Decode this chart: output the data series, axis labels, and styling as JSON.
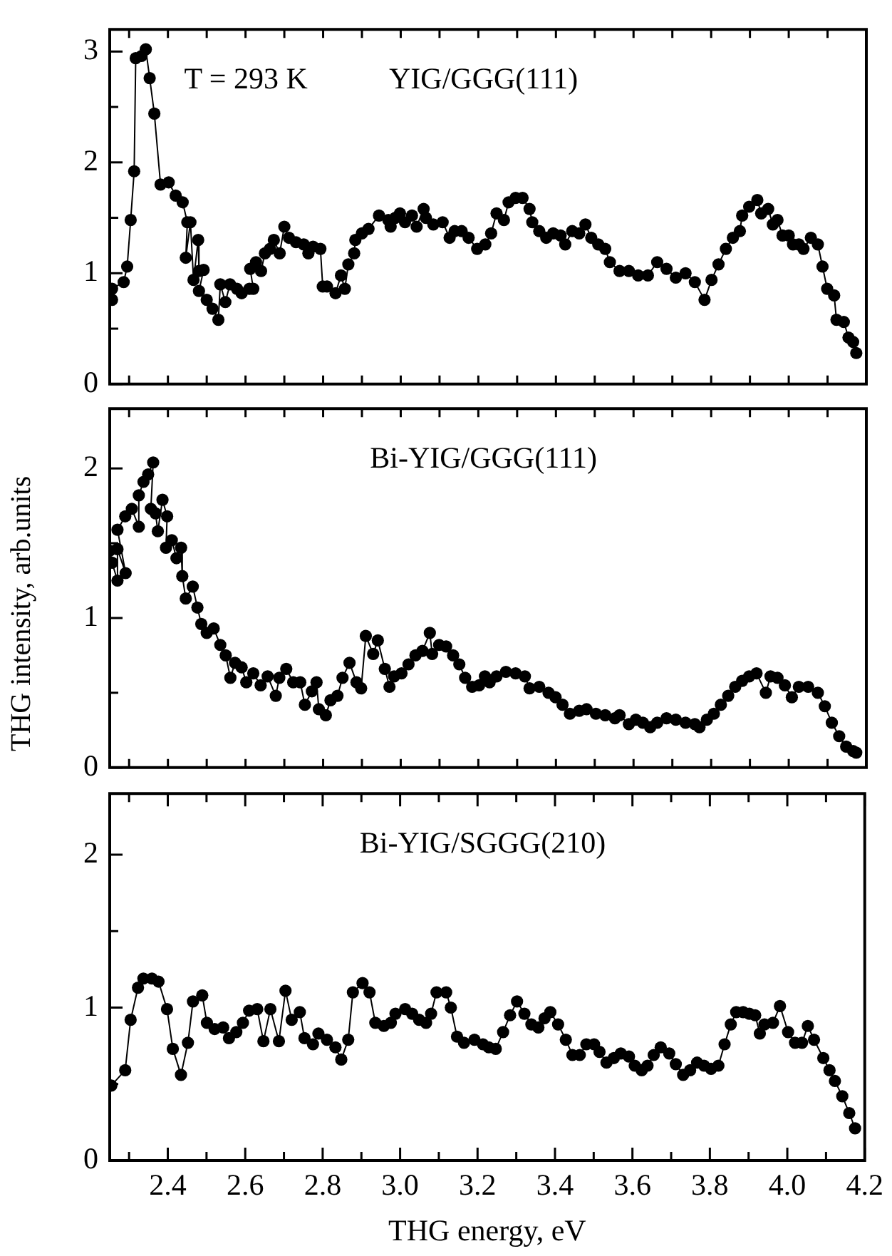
{
  "chart_data": [
    {
      "type": "line",
      "title": "YIG/GGG(111)",
      "annotations": [
        "T = 293 K"
      ],
      "color": "#000000",
      "marker": "circle",
      "line_style": "solid",
      "tick_labels": "y",
      "x": [
        2.256,
        2.256,
        2.286,
        2.295,
        2.304,
        2.313,
        2.317,
        2.332,
        2.343,
        2.353,
        2.365,
        2.381,
        2.402,
        2.42,
        2.438,
        2.45,
        2.446,
        2.458,
        2.466,
        2.478,
        2.48,
        2.492,
        2.48,
        2.5,
        2.515,
        2.53,
        2.535,
        2.548,
        2.56,
        2.578,
        2.59,
        2.61,
        2.62,
        2.612,
        2.627,
        2.64,
        2.65,
        2.663,
        2.673,
        2.688,
        2.7,
        2.712,
        2.73,
        2.75,
        2.762,
        2.774,
        2.793,
        2.799,
        2.81,
        2.832,
        2.846,
        2.856,
        2.865,
        2.88,
        2.883,
        2.9,
        2.917,
        2.944,
        2.968,
        2.974,
        2.986,
        2.998,
        3.011,
        3.029,
        3.041,
        3.059,
        3.065,
        3.084,
        3.108,
        3.126,
        3.139,
        3.157,
        3.175,
        3.197,
        3.218,
        3.233,
        3.247,
        3.266,
        3.278,
        3.296,
        3.314,
        3.332,
        3.339,
        3.357,
        3.375,
        3.393,
        3.412,
        3.424,
        3.442,
        3.46,
        3.476,
        3.491,
        3.509,
        3.527,
        3.539,
        3.564,
        3.588,
        3.612,
        3.637,
        3.661,
        3.685,
        3.709,
        3.734,
        3.758,
        3.783,
        3.801,
        3.819,
        3.838,
        3.856,
        3.874,
        3.88,
        3.898,
        3.919,
        3.929,
        3.947,
        3.959,
        3.971,
        3.984,
        4.0,
        4.011,
        4.026,
        4.038,
        4.057,
        4.075,
        4.087,
        4.099,
        4.117,
        4.123,
        4.142,
        4.154,
        4.166,
        4.174
      ],
      "values": [
        0.76,
        0.86,
        0.92,
        1.06,
        1.48,
        1.92,
        2.94,
        2.96,
        3.02,
        2.76,
        2.44,
        1.8,
        1.82,
        1.7,
        1.64,
        1.46,
        1.14,
        1.46,
        0.94,
        1.3,
        1.02,
        1.03,
        0.84,
        0.76,
        0.68,
        0.58,
        0.9,
        0.74,
        0.9,
        0.86,
        0.82,
        0.86,
        0.86,
        1.04,
        1.1,
        1.02,
        1.18,
        1.22,
        1.3,
        1.18,
        1.42,
        1.32,
        1.28,
        1.26,
        1.18,
        1.24,
        1.22,
        0.88,
        0.88,
        0.82,
        0.98,
        0.86,
        1.08,
        1.18,
        1.3,
        1.36,
        1.4,
        1.52,
        1.48,
        1.42,
        1.5,
        1.54,
        1.46,
        1.52,
        1.42,
        1.58,
        1.5,
        1.44,
        1.46,
        1.32,
        1.38,
        1.38,
        1.32,
        1.22,
        1.26,
        1.36,
        1.54,
        1.48,
        1.64,
        1.68,
        1.68,
        1.58,
        1.46,
        1.38,
        1.32,
        1.36,
        1.34,
        1.26,
        1.38,
        1.36,
        1.44,
        1.32,
        1.26,
        1.22,
        1.1,
        1.02,
        1.02,
        0.98,
        0.98,
        1.1,
        1.04,
        0.96,
        1.0,
        0.92,
        0.76,
        0.94,
        1.08,
        1.22,
        1.32,
        1.38,
        1.52,
        1.6,
        1.66,
        1.54,
        1.58,
        1.44,
        1.48,
        1.34,
        1.34,
        1.26,
        1.26,
        1.22,
        1.32,
        1.26,
        1.06,
        0.86,
        0.8,
        0.58,
        0.56,
        0.42,
        0.38,
        0.28
      ],
      "xlim": [
        2.25,
        4.2
      ],
      "xticks": [
        {
          "value": 2.3,
          "label": null
        },
        {
          "value": 2.4,
          "label": null
        },
        {
          "value": 2.5,
          "label": null
        },
        {
          "value": 2.6,
          "label": null
        },
        {
          "value": 2.7,
          "label": null
        },
        {
          "value": 2.8,
          "label": null
        },
        {
          "value": 2.9,
          "label": null
        },
        {
          "value": 3,
          "label": null
        },
        {
          "value": 3.1,
          "label": null
        },
        {
          "value": 3.2,
          "label": null
        },
        {
          "value": 3.3,
          "label": null
        },
        {
          "value": 3.4,
          "label": null
        },
        {
          "value": 3.5,
          "label": null
        },
        {
          "value": 3.6,
          "label": null
        },
        {
          "value": 3.7,
          "label": null
        },
        {
          "value": 3.8,
          "label": null
        },
        {
          "value": 3.9,
          "label": null
        },
        {
          "value": 4,
          "label": null
        },
        {
          "value": 4.1,
          "label": null
        },
        {
          "value": 4.2,
          "label": null
        }
      ],
      "ylim": [
        0,
        3.2
      ],
      "yticks": [
        0,
        {
          "value": 0.5,
          "label": null
        },
        1,
        {
          "value": 1.5,
          "label": null
        },
        2,
        {
          "value": 2.5,
          "label": null
        },
        3
      ]
    },
    {
      "type": "line",
      "title": "Bi-YIG/GGG(111)",
      "ylabel": "THG intensity, arb.units",
      "color": "#000000",
      "marker": "circle",
      "line_style": "solid",
      "tick_labels": "y",
      "x": [
        2.25,
        2.256,
        2.27,
        2.27,
        2.291,
        2.27,
        2.29,
        2.307,
        2.325,
        2.325,
        2.337,
        2.349,
        2.362,
        2.356,
        2.368,
        2.374,
        2.386,
        2.398,
        2.395,
        2.41,
        2.422,
        2.434,
        2.437,
        2.446,
        2.464,
        2.476,
        2.486,
        2.5,
        2.518,
        2.535,
        2.549,
        2.561,
        2.573,
        2.59,
        2.602,
        2.62,
        2.639,
        2.657,
        2.678,
        2.687,
        2.705,
        2.723,
        2.741,
        2.753,
        2.771,
        2.783,
        2.789,
        2.807,
        2.819,
        2.837,
        2.85,
        2.868,
        2.886,
        2.898,
        2.91,
        2.929,
        2.941,
        2.959,
        2.971,
        2.983,
        3.002,
        3.02,
        3.038,
        3.056,
        3.075,
        3.081,
        3.099,
        3.117,
        3.135,
        3.151,
        3.166,
        3.184,
        3.202,
        3.217,
        3.229,
        3.247,
        3.271,
        3.296,
        3.32,
        3.332,
        3.357,
        3.381,
        3.399,
        3.417,
        3.436,
        3.46,
        3.479,
        3.503,
        3.527,
        3.552,
        3.564,
        3.588,
        3.606,
        3.624,
        3.643,
        3.661,
        3.685,
        3.709,
        3.734,
        3.758,
        3.77,
        3.789,
        3.807,
        3.825,
        3.844,
        3.862,
        3.88,
        3.898,
        3.917,
        3.941,
        3.953,
        3.971,
        3.99,
        4.008,
        4.026,
        4.05,
        4.075,
        4.093,
        4.111,
        4.13,
        4.148,
        4.166,
        4.174
      ],
      "values": [
        1.45,
        1.37,
        1.25,
        1.46,
        1.3,
        1.59,
        1.68,
        1.73,
        1.61,
        1.82,
        1.91,
        1.96,
        2.04,
        1.73,
        1.7,
        1.58,
        1.79,
        1.68,
        1.47,
        1.52,
        1.4,
        1.47,
        1.28,
        1.13,
        1.21,
        1.07,
        0.96,
        0.9,
        0.93,
        0.82,
        0.75,
        0.6,
        0.7,
        0.67,
        0.57,
        0.63,
        0.55,
        0.61,
        0.48,
        0.6,
        0.66,
        0.57,
        0.57,
        0.42,
        0.51,
        0.57,
        0.39,
        0.35,
        0.45,
        0.48,
        0.6,
        0.7,
        0.57,
        0.53,
        0.88,
        0.76,
        0.85,
        0.66,
        0.54,
        0.61,
        0.63,
        0.69,
        0.75,
        0.78,
        0.9,
        0.76,
        0.82,
        0.81,
        0.75,
        0.69,
        0.6,
        0.54,
        0.55,
        0.61,
        0.57,
        0.61,
        0.64,
        0.63,
        0.61,
        0.53,
        0.54,
        0.5,
        0.47,
        0.42,
        0.36,
        0.38,
        0.39,
        0.36,
        0.35,
        0.33,
        0.35,
        0.29,
        0.32,
        0.3,
        0.27,
        0.3,
        0.33,
        0.32,
        0.3,
        0.29,
        0.27,
        0.32,
        0.36,
        0.42,
        0.48,
        0.54,
        0.58,
        0.61,
        0.63,
        0.5,
        0.61,
        0.6,
        0.55,
        0.47,
        0.54,
        0.54,
        0.5,
        0.41,
        0.3,
        0.21,
        0.14,
        0.11,
        0.1
      ],
      "xlim": [
        2.25,
        4.2
      ],
      "xticks": [
        {
          "value": 2.3,
          "label": null
        },
        {
          "value": 2.4,
          "label": null
        },
        {
          "value": 2.5,
          "label": null
        },
        {
          "value": 2.6,
          "label": null
        },
        {
          "value": 2.7,
          "label": null
        },
        {
          "value": 2.8,
          "label": null
        },
        {
          "value": 2.9,
          "label": null
        },
        {
          "value": 3,
          "label": null
        },
        {
          "value": 3.1,
          "label": null
        },
        {
          "value": 3.2,
          "label": null
        },
        {
          "value": 3.3,
          "label": null
        },
        {
          "value": 3.4,
          "label": null
        },
        {
          "value": 3.5,
          "label": null
        },
        {
          "value": 3.6,
          "label": null
        },
        {
          "value": 3.7,
          "label": null
        },
        {
          "value": 3.8,
          "label": null
        },
        {
          "value": 3.9,
          "label": null
        },
        {
          "value": 4,
          "label": null
        },
        {
          "value": 4.1,
          "label": null
        },
        {
          "value": 4.2,
          "label": null
        }
      ],
      "ylim": [
        0,
        2.4
      ],
      "yticks": [
        0,
        {
          "value": 0.5,
          "label": null
        },
        1,
        {
          "value": 1.5,
          "label": null
        },
        2
      ]
    },
    {
      "type": "line",
      "title": "Bi-YIG/SGGG(210)",
      "xlabel": "THG energy, eV",
      "color": "#000000",
      "marker": "circle",
      "line_style": "solid",
      "x": [
        2.254,
        2.29,
        2.304,
        2.323,
        2.337,
        2.359,
        2.376,
        2.398,
        2.413,
        2.434,
        2.452,
        2.465,
        2.489,
        2.501,
        2.521,
        2.543,
        2.558,
        2.577,
        2.594,
        2.61,
        2.631,
        2.647,
        2.665,
        2.687,
        2.704,
        2.72,
        2.741,
        2.753,
        2.775,
        2.789,
        2.811,
        2.833,
        2.848,
        2.866,
        2.878,
        2.903,
        2.921,
        2.936,
        2.958,
        2.976,
        2.988,
        3.013,
        3.031,
        3.049,
        3.067,
        3.08,
        3.094,
        3.119,
        3.131,
        3.147,
        3.165,
        3.192,
        3.214,
        3.229,
        3.247,
        3.266,
        3.284,
        3.302,
        3.321,
        3.339,
        3.357,
        3.373,
        3.388,
        3.408,
        3.428,
        3.445,
        3.464,
        3.481,
        3.501,
        3.515,
        3.533,
        3.552,
        3.57,
        3.591,
        3.606,
        3.624,
        3.639,
        3.655,
        3.673,
        3.695,
        3.712,
        3.731,
        3.749,
        3.767,
        3.785,
        3.803,
        3.822,
        3.838,
        3.854,
        3.868,
        3.886,
        3.902,
        3.917,
        3.929,
        3.941,
        3.963,
        3.981,
        4.002,
        4.02,
        4.038,
        4.053,
        4.069,
        4.093,
        4.109,
        4.123,
        4.142,
        4.16,
        4.175
      ],
      "values": [
        0.49,
        0.59,
        0.92,
        1.13,
        1.19,
        1.19,
        1.17,
        0.99,
        0.73,
        0.56,
        0.77,
        1.04,
        1.08,
        0.9,
        0.86,
        0.87,
        0.8,
        0.84,
        0.9,
        0.98,
        0.99,
        0.78,
        0.99,
        0.78,
        1.11,
        0.92,
        0.97,
        0.8,
        0.76,
        0.83,
        0.79,
        0.74,
        0.66,
        0.79,
        1.1,
        1.16,
        1.1,
        0.9,
        0.88,
        0.9,
        0.96,
        0.99,
        0.96,
        0.92,
        0.9,
        0.96,
        1.1,
        1.1,
        1.0,
        0.81,
        0.77,
        0.79,
        0.76,
        0.74,
        0.73,
        0.84,
        0.95,
        1.04,
        0.96,
        0.89,
        0.87,
        0.93,
        0.97,
        0.89,
        0.79,
        0.69,
        0.69,
        0.76,
        0.76,
        0.71,
        0.64,
        0.67,
        0.7,
        0.68,
        0.62,
        0.59,
        0.62,
        0.69,
        0.74,
        0.7,
        0.63,
        0.56,
        0.59,
        0.64,
        0.62,
        0.6,
        0.62,
        0.76,
        0.89,
        0.97,
        0.97,
        0.96,
        0.95,
        0.83,
        0.89,
        0.9,
        1.01,
        0.84,
        0.77,
        0.77,
        0.88,
        0.79,
        0.67,
        0.59,
        0.52,
        0.42,
        0.31,
        0.21
      ],
      "xlim": [
        2.25,
        4.2
      ],
      "xticks": [
        {
          "value": 2.3,
          "label": null
        },
        2.4,
        {
          "value": 2.5,
          "label": null
        },
        2.6,
        {
          "value": 2.7,
          "label": null
        },
        2.8,
        {
          "value": 2.9,
          "label": null
        },
        {
          "value": 3,
          "label": "3.0"
        },
        {
          "value": 3.1,
          "label": null
        },
        3.2,
        {
          "value": 3.3,
          "label": null
        },
        3.4,
        {
          "value": 3.5,
          "label": null
        },
        3.6,
        {
          "value": 3.7,
          "label": null
        },
        3.8,
        {
          "value": 3.9,
          "label": null
        },
        {
          "value": 4,
          "label": "4.0"
        },
        {
          "value": 4.1,
          "label": null
        },
        4.2
      ],
      "ylim": [
        0,
        2.4
      ],
      "yticks": [
        0,
        {
          "value": 0.5,
          "label": null
        },
        1,
        {
          "value": 1.5,
          "label": null
        },
        2
      ]
    }
  ]
}
